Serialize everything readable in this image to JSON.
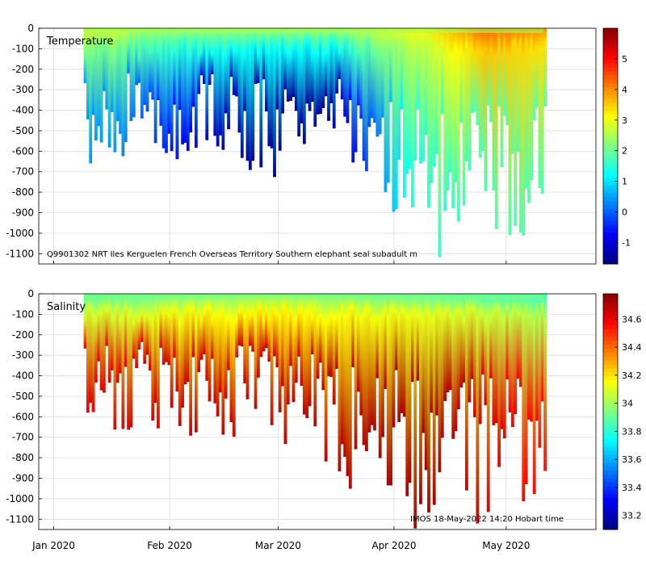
{
  "chart_data": [
    {
      "type": "heatmap",
      "title": "Temperature",
      "variable": "Temperature",
      "annotation": "Q9901302 NRT Iles Kerguelen French Overseas Territory Southern elephant seal subadult m",
      "ylim": [
        -1150,
        0
      ],
      "yticks": [
        0,
        -100,
        -200,
        -300,
        -400,
        -500,
        -600,
        -700,
        -800,
        -900,
        -1000,
        -1100
      ],
      "colorbar": {
        "range": [
          -1.7,
          6.0
        ],
        "ticks": [
          -1,
          0,
          1,
          2,
          3,
          4,
          5
        ],
        "colormap": "jet"
      },
      "profiles": [
        {
          "date": "2020-01-17",
          "max_depth": 670,
          "surface_value": 2.8,
          "core_value": 0.4
        },
        {
          "date": "2020-01-24",
          "max_depth": 430,
          "surface_value": 2.5,
          "core_value": 0.0
        },
        {
          "date": "2020-02-01",
          "max_depth": 670,
          "surface_value": 2.4,
          "core_value": -0.6
        },
        {
          "date": "2020-02-15",
          "max_depth": 600,
          "surface_value": 2.4,
          "core_value": -1.3
        },
        {
          "date": "2020-02-28",
          "max_depth": 710,
          "surface_value": 2.4,
          "core_value": -1.5
        },
        {
          "date": "2020-03-15",
          "max_depth": 520,
          "surface_value": 2.4,
          "core_value": -1.5
        },
        {
          "date": "2020-04-05",
          "max_depth": 950,
          "surface_value": 3.0,
          "core_value": 1.4
        },
        {
          "date": "2020-04-10",
          "max_depth": 1145,
          "surface_value": 3.2,
          "core_value": 1.5
        },
        {
          "date": "2020-04-25",
          "max_depth": 950,
          "surface_value": 4.3,
          "core_value": 1.8
        },
        {
          "date": "2020-05-10",
          "max_depth": 980,
          "surface_value": 4.0,
          "core_value": 1.8
        }
      ]
    },
    {
      "type": "heatmap",
      "title": "Salinity",
      "variable": "Salinity",
      "annotation": "IMOS 18-May-2022 14:20 Hobart time",
      "ylim": [
        -1150,
        0
      ],
      "yticks": [
        0,
        -100,
        -200,
        -300,
        -400,
        -500,
        -600,
        -700,
        -800,
        -900,
        -1000,
        -1100
      ],
      "colorbar": {
        "range": [
          33.1,
          34.78
        ],
        "ticks": [
          33.2,
          33.4,
          33.6,
          33.8,
          34,
          34.2,
          34.4,
          34.6
        ],
        "colormap": "jet"
      },
      "profiles": [
        {
          "date": "2020-01-17",
          "max_depth": 670,
          "surface_value": 33.85,
          "core_value": 34.62
        },
        {
          "date": "2020-02-01",
          "max_depth": 670,
          "surface_value": 33.9,
          "core_value": 34.65
        },
        {
          "date": "2020-02-28",
          "max_depth": 710,
          "surface_value": 33.95,
          "core_value": 34.66
        },
        {
          "date": "2020-04-10",
          "max_depth": 1145,
          "surface_value": 33.85,
          "core_value": 34.72
        },
        {
          "date": "2020-05-10",
          "max_depth": 980,
          "surface_value": 33.8,
          "core_value": 34.55
        }
      ]
    }
  ],
  "x_axis": {
    "range": [
      "2019-12-28",
      "2020-05-25"
    ],
    "ticks": [
      {
        "date": "2020-01-01",
        "label": "Jan 2020"
      },
      {
        "date": "2020-02-01",
        "label": "Feb 2020"
      },
      {
        "date": "2020-03-01",
        "label": "Mar 2020"
      },
      {
        "date": "2020-04-01",
        "label": "Apr 2020"
      },
      {
        "date": "2020-05-01",
        "label": "May 2020"
      }
    ]
  }
}
